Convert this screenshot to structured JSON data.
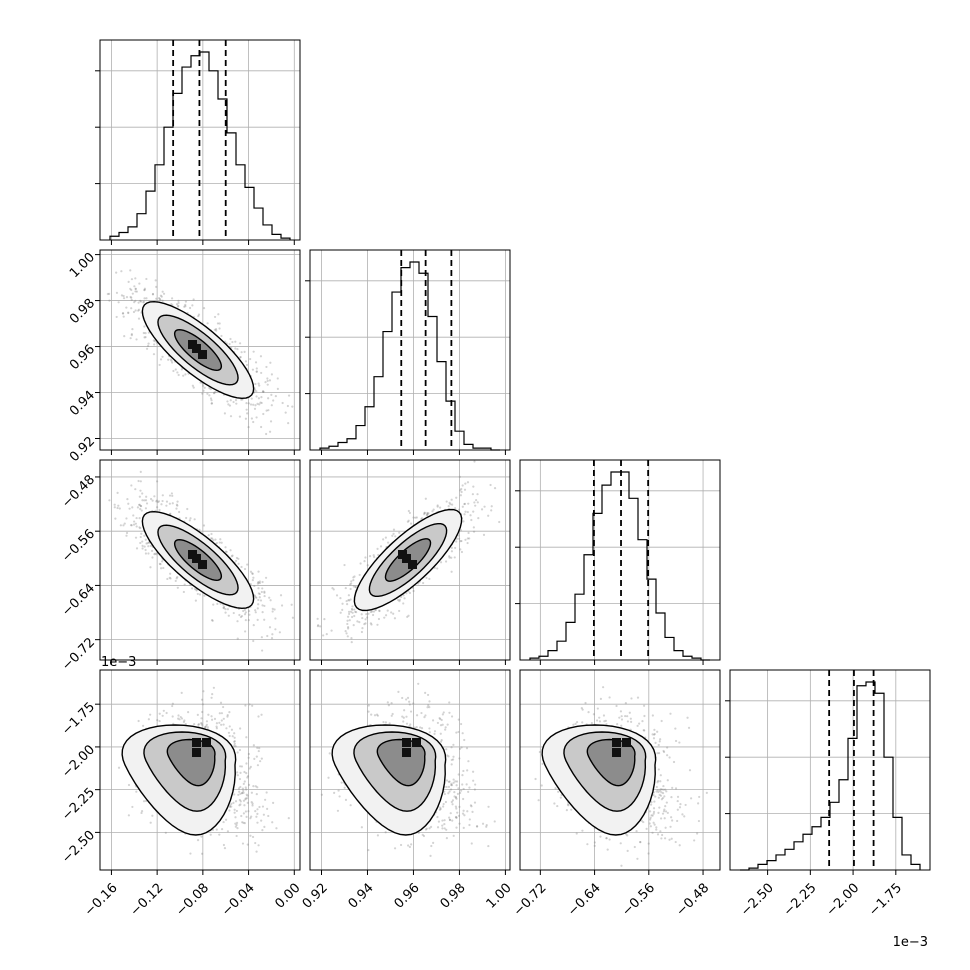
{
  "colors": {
    "ink": "#000000",
    "grid": "#b0b0b0",
    "scatter": "#808080"
  },
  "chart_data": {
    "type": "corner",
    "grid": true,
    "parameters": [
      {
        "range": [
          -0.17,
          0.005
        ],
        "ticks": [
          -0.16,
          -0.12,
          -0.08,
          -0.04,
          0.0
        ],
        "tick_labels": [
          "−0.16",
          "−0.12",
          "−0.08",
          "−0.04",
          "0.00"
        ],
        "quantiles": [
          -0.106,
          -0.083,
          -0.06
        ],
        "hist": {
          "counts": [
            0.02,
            0.04,
            0.07,
            0.14,
            0.26,
            0.4,
            0.6,
            0.78,
            0.92,
            0.98,
            1.0,
            0.9,
            0.75,
            0.57,
            0.4,
            0.28,
            0.17,
            0.08,
            0.03,
            0.01
          ]
        }
      },
      {
        "range": [
          0.915,
          1.002
        ],
        "ticks": [
          0.92,
          0.94,
          0.96,
          0.98,
          1.0
        ],
        "tick_labels": [
          "0.92",
          "0.94",
          "0.96",
          "0.98",
          "1.00"
        ],
        "quantiles": [
          0.9547,
          0.9653,
          0.9765
        ],
        "hist": {
          "counts": [
            0.01,
            0.02,
            0.04,
            0.06,
            0.13,
            0.23,
            0.39,
            0.63,
            0.84,
            0.97,
            1.0,
            0.94,
            0.71,
            0.47,
            0.26,
            0.1,
            0.03,
            0.01,
            0.01,
            0.0
          ]
        }
      },
      {
        "range": [
          -0.75,
          -0.455
        ],
        "ticks": [
          -0.72,
          -0.64,
          -0.56,
          -0.48
        ],
        "tick_labels": [
          "−0.72",
          "−0.64",
          "−0.56",
          "−0.48"
        ],
        "quantiles": [
          -0.641,
          -0.601,
          -0.561
        ],
        "hist": {
          "counts": [
            0.01,
            0.02,
            0.05,
            0.1,
            0.2,
            0.35,
            0.56,
            0.78,
            0.93,
            1.0,
            1.0,
            0.86,
            0.64,
            0.43,
            0.25,
            0.12,
            0.05,
            0.02,
            0.01,
            0.0
          ]
        }
      },
      {
        "range": [
          -2.72,
          -1.55
        ],
        "ticks": [
          -2.5,
          -2.25,
          -2.0,
          -1.75
        ],
        "tick_labels": [
          "−2.50",
          "−2.25",
          "−2.00",
          "−1.75"
        ],
        "quantiles": [
          -2.14,
          -1.995,
          -1.88
        ],
        "hist": {
          "counts": [
            0.0,
            0.01,
            0.03,
            0.05,
            0.08,
            0.11,
            0.15,
            0.19,
            0.23,
            0.28,
            0.36,
            0.48,
            0.7,
            0.98,
            1.0,
            0.94,
            0.6,
            0.28,
            0.08,
            0.03
          ]
        }
      }
    ],
    "offsets": {
      "row3_y": "1e−3",
      "col3_x": "1e−3"
    }
  }
}
